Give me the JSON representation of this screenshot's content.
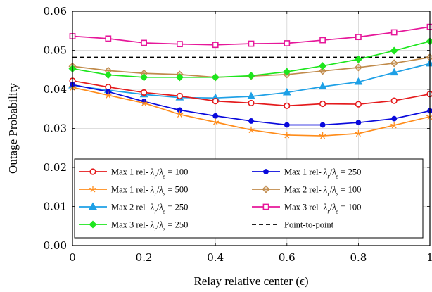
{
  "chart_data": {
    "type": "line",
    "xlabel": "Relay relative center (ϵ)",
    "ylabel": "Outage Probability",
    "xlim": [
      0,
      1
    ],
    "ylim": [
      0,
      0.06
    ],
    "x_ticks": [
      "0",
      "0.2",
      "0.4",
      "0.6",
      "0.8",
      "1"
    ],
    "y_ticks": [
      "0.00",
      "0.01",
      "0.02",
      "0.03",
      "0.04",
      "0.05",
      "0.06"
    ],
    "grid": true,
    "legend_position": "lower-center",
    "x": [
      0,
      0.1,
      0.2,
      0.3,
      0.4,
      0.5,
      0.6,
      0.7,
      0.8,
      0.9,
      1.0
    ],
    "series": [
      {
        "name": "Max 1 rel- λ_r/λ_s = 100",
        "prefix": "Max 1 rel- ",
        "ratio": "100",
        "color": "#e41a1c",
        "marker": "circle",
        "values": [
          0.0422,
          0.0406,
          0.0392,
          0.0383,
          0.037,
          0.0365,
          0.0358,
          0.0363,
          0.0362,
          0.0371,
          0.0388
        ]
      },
      {
        "name": "Max 1 rel- λ_r/λ_s = 250",
        "prefix": "Max 1 rel- ",
        "ratio": "250",
        "color": "#0a0adc",
        "marker": "dot",
        "values": [
          0.0412,
          0.0394,
          0.0369,
          0.0347,
          0.0332,
          0.0319,
          0.0309,
          0.0309,
          0.0315,
          0.0325,
          0.0345
        ]
      },
      {
        "name": "Max 1 rel- λ_r/λ_s = 500",
        "prefix": "Max 1 rel- ",
        "ratio": "500",
        "color": "#ff8c1a",
        "marker": "star",
        "values": [
          0.0405,
          0.0385,
          0.0365,
          0.0336,
          0.0316,
          0.0296,
          0.0283,
          0.0281,
          0.0287,
          0.0308,
          0.033
        ]
      },
      {
        "name": "Max 2 rel- λ_r/λ_s = 100",
        "prefix": "Max 2 rel- ",
        "ratio": "100",
        "color": "#c08a4a",
        "marker": "diamond",
        "values": [
          0.0459,
          0.0448,
          0.0441,
          0.0438,
          0.0431,
          0.0434,
          0.0438,
          0.0447,
          0.0456,
          0.0467,
          0.0482
        ]
      },
      {
        "name": "Max 2 rel- λ_r/λ_s = 250",
        "prefix": "Max 2 rel- ",
        "ratio": "250",
        "color": "#1ea0e6",
        "marker": "triangle",
        "values": [
          0.041,
          0.0398,
          0.0387,
          0.0379,
          0.0378,
          0.0382,
          0.0392,
          0.0407,
          0.0419,
          0.0443,
          0.0466
        ]
      },
      {
        "name": "Max 3 rel- λ_r/λ_s = 100",
        "prefix": "Max 3 rel- ",
        "ratio": "100",
        "color": "#e6179a",
        "marker": "square",
        "values": [
          0.0536,
          0.053,
          0.0519,
          0.0516,
          0.0514,
          0.0517,
          0.0518,
          0.0526,
          0.0534,
          0.0546,
          0.056
        ]
      },
      {
        "name": "Max 3 rel- λ_r/λ_s = 250",
        "prefix": "Max 3 rel- ",
        "ratio": "250",
        "color": "#1ee61e",
        "marker": "diamond",
        "values": [
          0.0453,
          0.0437,
          0.0431,
          0.0431,
          0.0431,
          0.0435,
          0.0445,
          0.046,
          0.0477,
          0.0499,
          0.0523
        ]
      },
      {
        "name": "Point-to-point",
        "color": "#000000",
        "marker": "none",
        "dashed": true,
        "values": [
          0.0482,
          0.0482,
          0.0482,
          0.0482,
          0.0482,
          0.0482,
          0.0482,
          0.0482,
          0.0482,
          0.0482,
          0.0482
        ]
      }
    ]
  }
}
